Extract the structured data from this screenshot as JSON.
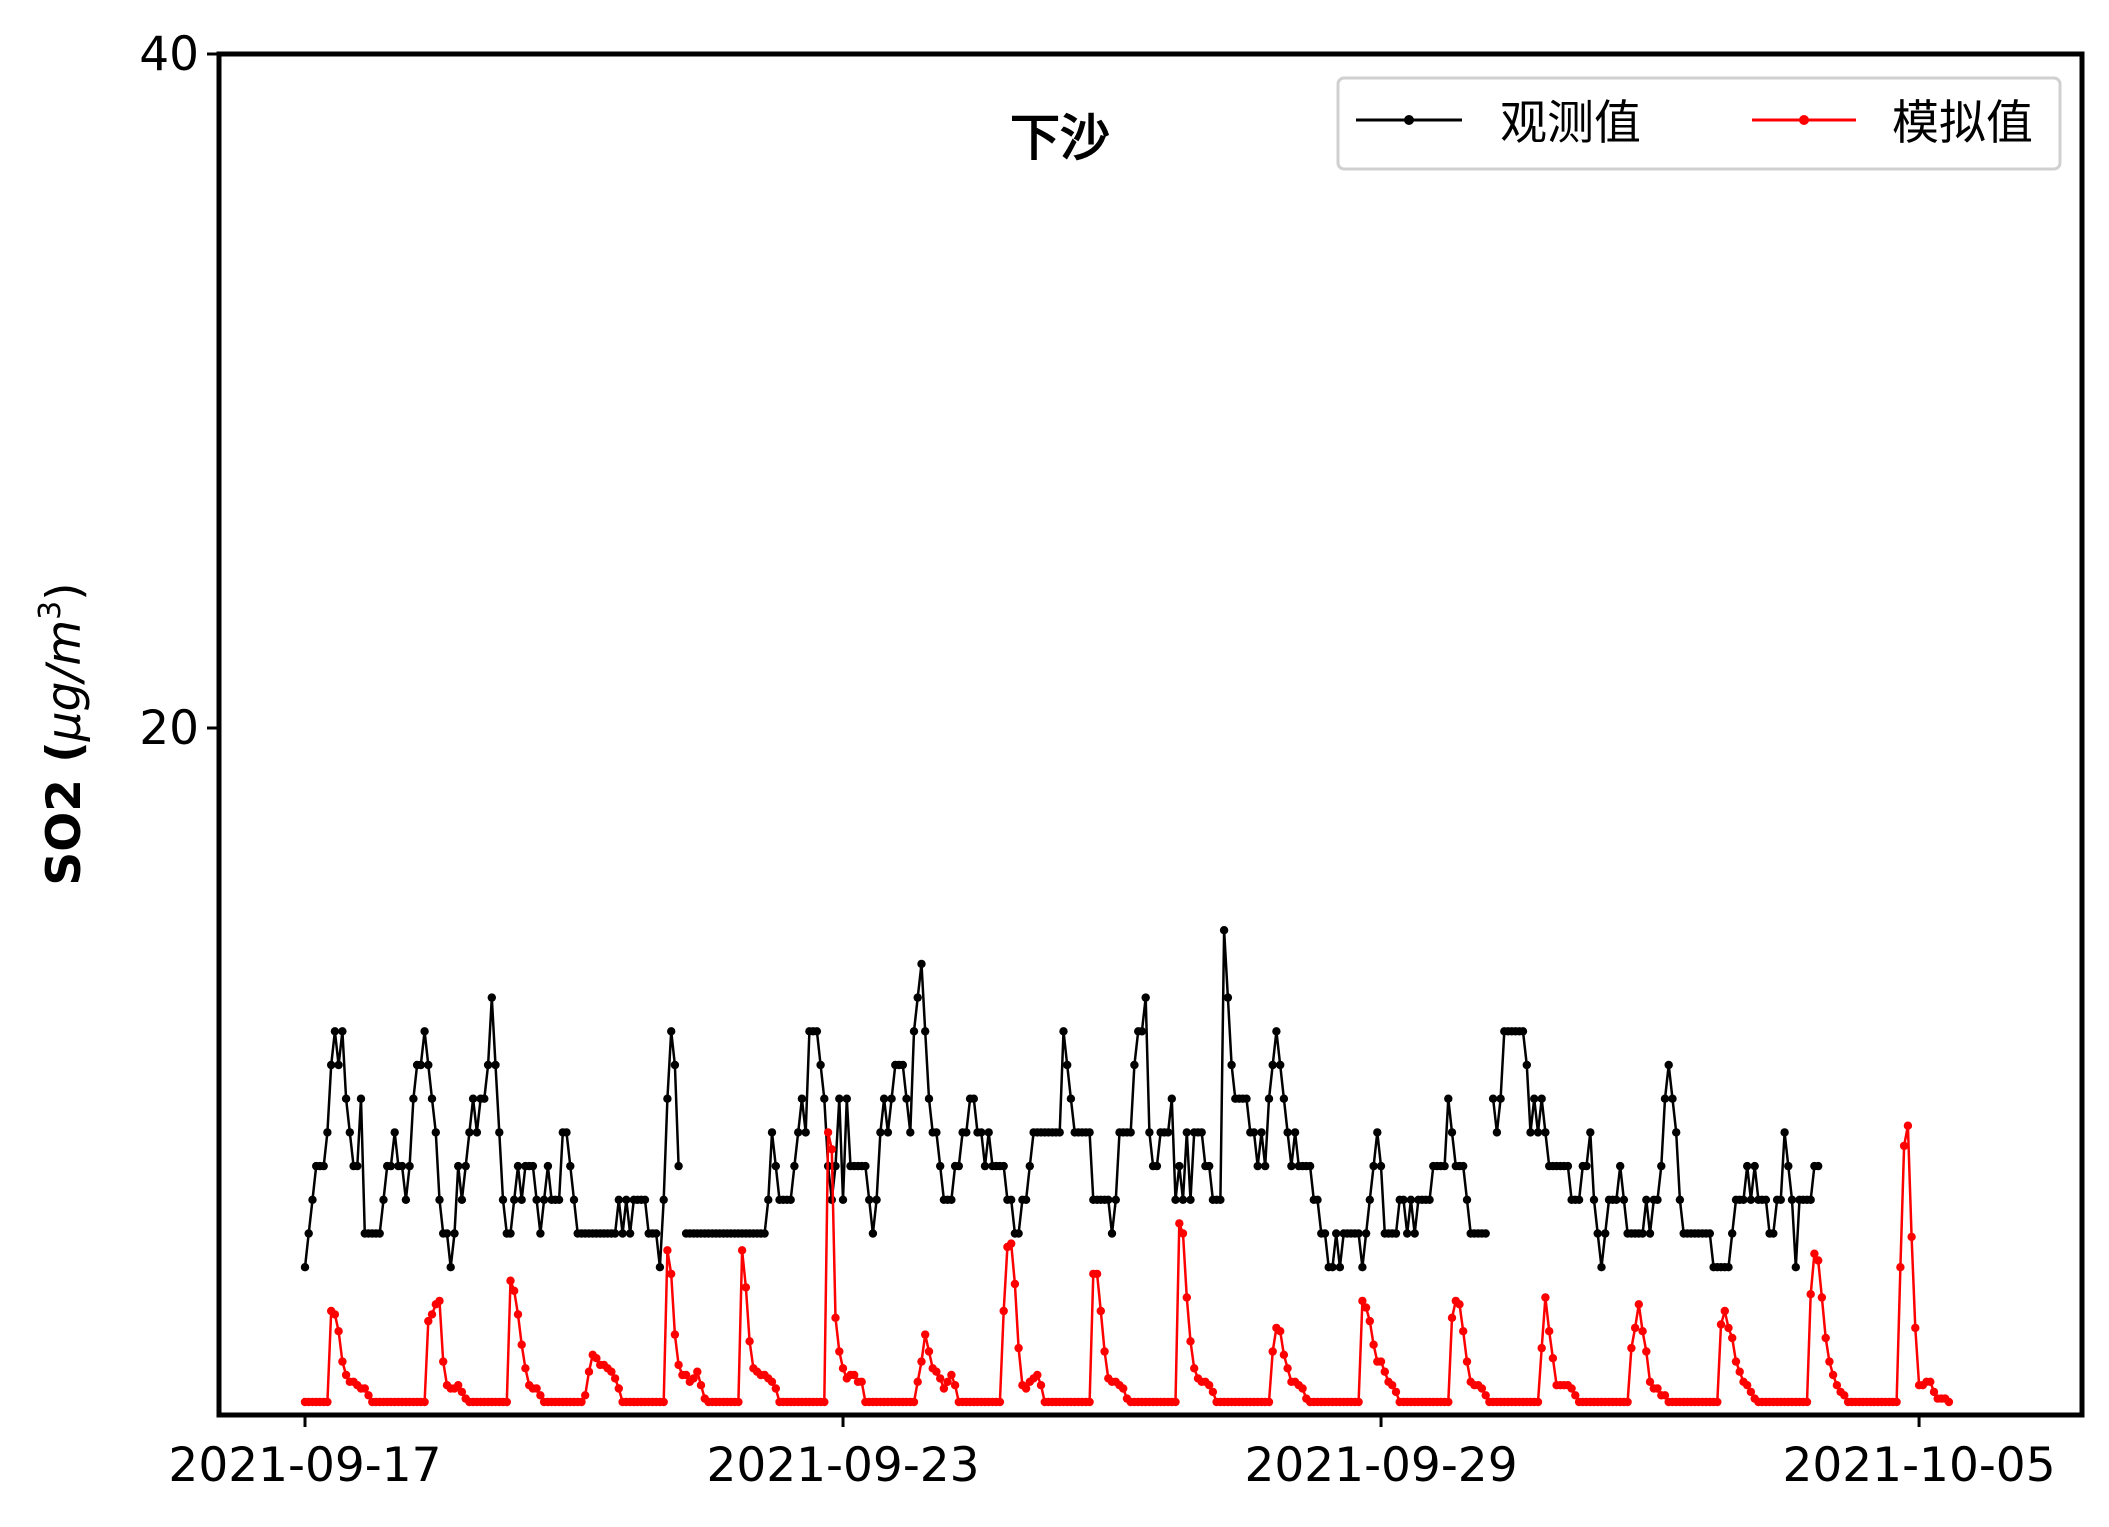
{
  "chart_data": {
    "type": "line",
    "title": "下沙",
    "ylabel_main": "SO2 (",
    "ylabel_unit": "μg/m",
    "ylabel_sup": "3",
    "ylabel_close": ")",
    "ylim": [
      0,
      40
    ],
    "yticks": [
      20,
      40
    ],
    "xticks": [
      "2021-09-17",
      "2021-09-23",
      "2021-09-29",
      "2021-10-05"
    ],
    "x_start": "2021-09-17 00:00",
    "x_step_hours": 1,
    "legend_position": "top-right",
    "grid": false,
    "series": [
      {
        "name": "观测值",
        "color": "#000000",
        "values": [
          4,
          5,
          6,
          7,
          7,
          7,
          8,
          10,
          11,
          10,
          11,
          9,
          8,
          7,
          7,
          9,
          5,
          5,
          5,
          5,
          5,
          6,
          7,
          7,
          8,
          7,
          7,
          6,
          7,
          9,
          10,
          10,
          11,
          10,
          9,
          8,
          6,
          5,
          5,
          4,
          5,
          7,
          6,
          7,
          8,
          9,
          8,
          9,
          9,
          10,
          12,
          10,
          8,
          6,
          5,
          5,
          6,
          7,
          6,
          7,
          7,
          7,
          6,
          5,
          6,
          7,
          6,
          6,
          6,
          8,
          8,
          7,
          6,
          5,
          5,
          5,
          5,
          5,
          5,
          5,
          5,
          5,
          5,
          5,
          6,
          5,
          6,
          5,
          6,
          6,
          6,
          6,
          5,
          5,
          5,
          4,
          6,
          9,
          11,
          10,
          7,
          null,
          5,
          5,
          5,
          5,
          5,
          5,
          5,
          5,
          5,
          5,
          5,
          5,
          5,
          5,
          5,
          5,
          5,
          5,
          5,
          5,
          5,
          5,
          6,
          8,
          7,
          6,
          6,
          6,
          6,
          7,
          8,
          9,
          8,
          11,
          11,
          11,
          10,
          9,
          7,
          6,
          7,
          9,
          6,
          9,
          7,
          7,
          7,
          7,
          7,
          6,
          5,
          6,
          8,
          9,
          8,
          9,
          10,
          10,
          10,
          9,
          8,
          11,
          12,
          13,
          11,
          9,
          8,
          8,
          7,
          6,
          6,
          6,
          7,
          7,
          8,
          8,
          9,
          9,
          8,
          8,
          7,
          8,
          7,
          7,
          7,
          7,
          6,
          6,
          5,
          5,
          6,
          6,
          7,
          8,
          8,
          8,
          8,
          8,
          8,
          8,
          8,
          11,
          10,
          9,
          8,
          8,
          8,
          8,
          8,
          6,
          6,
          6,
          6,
          6,
          5,
          6,
          8,
          8,
          8,
          8,
          10,
          11,
          11,
          12,
          8,
          7,
          7,
          8,
          8,
          8,
          9,
          6,
          7,
          6,
          8,
          6,
          8,
          8,
          8,
          7,
          7,
          6,
          6,
          6,
          14,
          12,
          10,
          9,
          9,
          9,
          9,
          8,
          8,
          7,
          8,
          7,
          9,
          10,
          11,
          10,
          9,
          8,
          7,
          8,
          7,
          7,
          7,
          7,
          6,
          6,
          5,
          5,
          4,
          4,
          5,
          4,
          5,
          5,
          5,
          5,
          5,
          4,
          5,
          6,
          7,
          8,
          7,
          5,
          5,
          5,
          5,
          6,
          6,
          5,
          6,
          5,
          6,
          6,
          6,
          6,
          7,
          7,
          7,
          7,
          9,
          8,
          7,
          7,
          7,
          6,
          5,
          5,
          5,
          5,
          5,
          null,
          9,
          8,
          9,
          11,
          11,
          11,
          11,
          11,
          11,
          10,
          8,
          9,
          8,
          9,
          8,
          7,
          7,
          7,
          7,
          7,
          7,
          6,
          6,
          6,
          7,
          7,
          8,
          6,
          5,
          4,
          5,
          6,
          6,
          6,
          7,
          6,
          5,
          5,
          5,
          5,
          5,
          6,
          5,
          6,
          6,
          7,
          9,
          10,
          9,
          8,
          6,
          5,
          5,
          5,
          5,
          5,
          5,
          5,
          5,
          4,
          4,
          4,
          4,
          4,
          5,
          6,
          6,
          6,
          7,
          6,
          7,
          6,
          6,
          6,
          5,
          5,
          6,
          6,
          8,
          7,
          6,
          4,
          6,
          6,
          6,
          6,
          7,
          7
        ]
      },
      {
        "name": "模拟值",
        "color": "#ff0000",
        "values": [
          0,
          0,
          0,
          0,
          0,
          0,
          0,
          2.7,
          2.6,
          2.1,
          1.2,
          0.8,
          0.6,
          0.6,
          0.5,
          0.4,
          0.4,
          0.2,
          0,
          0,
          0,
          0,
          0,
          0,
          0,
          0,
          0,
          0,
          0,
          0,
          0,
          0,
          0,
          2.4,
          2.6,
          2.9,
          3,
          1.2,
          0.5,
          0.4,
          0.4,
          0.5,
          0.3,
          0.1,
          0,
          0,
          0,
          0,
          0,
          0,
          0,
          0,
          0,
          0,
          0,
          3.6,
          3.3,
          2.6,
          1.7,
          1,
          0.5,
          0.4,
          0.4,
          0.2,
          0,
          0,
          0,
          0,
          0,
          0,
          0,
          0,
          0,
          0,
          0,
          0.2,
          0.9,
          1.4,
          1.3,
          1.1,
          1.1,
          1,
          0.9,
          0.7,
          0.4,
          0,
          0,
          0,
          0,
          0,
          0,
          0,
          0,
          0,
          0,
          0,
          0,
          4.5,
          3.8,
          2,
          1.1,
          0.8,
          0.8,
          0.6,
          0.7,
          0.9,
          0.5,
          0.1,
          0,
          0,
          0,
          0,
          0,
          0,
          0,
          0,
          0,
          4.5,
          3.4,
          1.8,
          1,
          0.9,
          0.8,
          0.8,
          0.7,
          0.6,
          0.4,
          0,
          0,
          0,
          0,
          0,
          0,
          0,
          0,
          0,
          0,
          0,
          0,
          0,
          8,
          7.5,
          2.5,
          1.5,
          1,
          0.7,
          0.8,
          0.8,
          0.6,
          0.6,
          0,
          0,
          0,
          0,
          0,
          0,
          0,
          0,
          0,
          0,
          0,
          0,
          0,
          0,
          0.6,
          1.2,
          2,
          1.5,
          1,
          0.9,
          0.7,
          0.4,
          0.6,
          0.8,
          0.5,
          0,
          0,
          0,
          0,
          0,
          0,
          0,
          0,
          0,
          0,
          0,
          0,
          2.7,
          4.6,
          4.7,
          3.5,
          1.6,
          0.5,
          0.4,
          0.6,
          0.7,
          0.8,
          0.5,
          0,
          0,
          0,
          0,
          0,
          0,
          0,
          0,
          0,
          0,
          0,
          0,
          0,
          3.8,
          3.8,
          2.7,
          1.5,
          0.7,
          0.6,
          0.6,
          0.5,
          0.4,
          0.1,
          0,
          0,
          0,
          0,
          0,
          0,
          0,
          0,
          0,
          0,
          0,
          0,
          0,
          5.3,
          5,
          3.1,
          1.8,
          1,
          0.7,
          0.6,
          0.6,
          0.5,
          0.3,
          0,
          0,
          0,
          0,
          0,
          0,
          0,
          0,
          0,
          0,
          0,
          0,
          0,
          0,
          0,
          1.5,
          2.2,
          2.1,
          1.4,
          1,
          0.6,
          0.6,
          0.5,
          0.4,
          0.1,
          0,
          0,
          0,
          0,
          0,
          0,
          0,
          0,
          0,
          0,
          0,
          0,
          0,
          0,
          3,
          2.8,
          2.4,
          1.7,
          1.2,
          1.2,
          0.9,
          0.6,
          0.5,
          0.3,
          0,
          0,
          0,
          0,
          0,
          0,
          0,
          0,
          0,
          0,
          0,
          0,
          0,
          0,
          2.5,
          3,
          2.9,
          2.1,
          1.2,
          0.6,
          0.5,
          0.5,
          0.4,
          0.2,
          0,
          0,
          0,
          0,
          0,
          0,
          0,
          0,
          0,
          0,
          0,
          0,
          0,
          0,
          1.6,
          3.1,
          2.1,
          1.3,
          0.5,
          0.5,
          0.5,
          0.5,
          0.4,
          0.2,
          0,
          0,
          0,
          0,
          0,
          0,
          0,
          0,
          0,
          0,
          0,
          0,
          0,
          0,
          1.6,
          2.2,
          2.9,
          2.1,
          1.5,
          0.6,
          0.4,
          0.4,
          0.2,
          0.2,
          0,
          0,
          0,
          0,
          0,
          0,
          0,
          0,
          0,
          0,
          0,
          0,
          0,
          0,
          2.3,
          2.7,
          2.2,
          1.9,
          1.2,
          0.9,
          0.6,
          0.5,
          0.3,
          0.1,
          0,
          0,
          0,
          0,
          0,
          0,
          0,
          0,
          0,
          0,
          0,
          0,
          0,
          0,
          3.2,
          4.4,
          4.2,
          3.1,
          1.9,
          1.2,
          0.8,
          0.5,
          0.3,
          0.2,
          0,
          0,
          0,
          0,
          0,
          0,
          0,
          0,
          0,
          0,
          0,
          0,
          0,
          0,
          4,
          7.6,
          8.2,
          4.9,
          2.2,
          0.5,
          0.5,
          0.6,
          0.6,
          0.3,
          0.1,
          0.1,
          0.1,
          0
        ]
      }
    ]
  }
}
